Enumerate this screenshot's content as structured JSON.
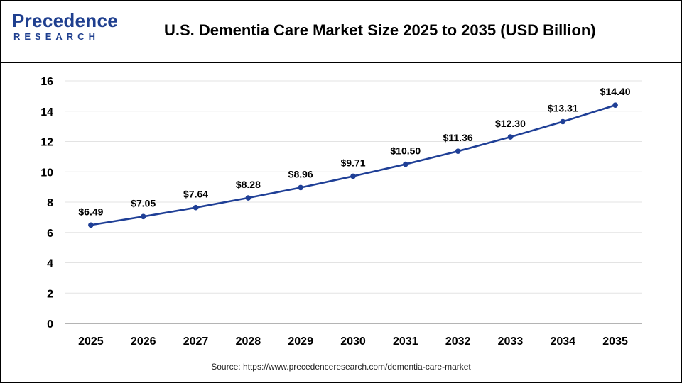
{
  "header": {
    "logo_main": "Precedence",
    "logo_sub": "RESEARCH",
    "title": "U.S. Dementia Care Market Size 2025 to 2035 (USD Billion)"
  },
  "footer": {
    "source": "Source: https://www.precedenceresearch.com/dementia-care-market"
  },
  "colors": {
    "line": "#1f3f96",
    "grid": "#e3e3e3",
    "axis": "#888888",
    "brand": "#1f3f8f"
  },
  "chart_data": {
    "type": "line",
    "title": "U.S. Dementia Care Market Size 2025 to 2035 (USD Billion)",
    "xlabel": "",
    "ylabel": "",
    "categories": [
      "2025",
      "2026",
      "2027",
      "2028",
      "2029",
      "2030",
      "2031",
      "2032",
      "2033",
      "2034",
      "2035"
    ],
    "values": [
      6.49,
      7.05,
      7.64,
      8.28,
      8.96,
      9.71,
      10.5,
      11.36,
      12.3,
      13.31,
      14.4
    ],
    "data_labels": [
      "$6.49",
      "$7.05",
      "$7.64",
      "$8.28",
      "$8.96",
      "$9.71",
      "$10.50",
      "$11.36",
      "$12.30",
      "$13.31",
      "$14.40"
    ],
    "ylim": [
      0,
      16
    ],
    "yticks": [
      0,
      2,
      4,
      6,
      8,
      10,
      12,
      14,
      16
    ],
    "grid": true,
    "legend": "none"
  }
}
